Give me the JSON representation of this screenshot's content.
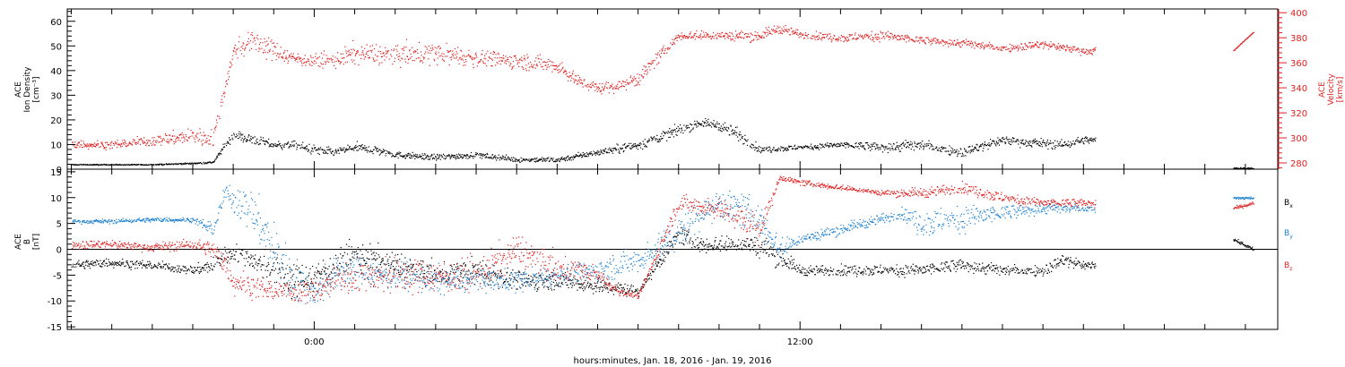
{
  "chart_data": [
    {
      "type": "scatter",
      "panel": "top",
      "title": "",
      "ylabel_left": [
        "ACE",
        "Ion Density",
        "[cm⁻³]"
      ],
      "ylabel_right": [
        "ACE",
        "Velocity",
        "[km/s]"
      ],
      "left_ticks": [
        "0",
        "10",
        "20",
        "30",
        "40",
        "50",
        "60"
      ],
      "right_ticks": [
        "280",
        "300",
        "320",
        "340",
        "360",
        "380",
        "400"
      ],
      "ylim_left": [
        0,
        65
      ],
      "ylim_right": [
        275,
        403
      ],
      "x_unit": "hours from 2016-01-18 00:00",
      "xlim": [
        -6.1,
        23.8
      ],
      "series": [
        {
          "name": "",
          "axis": "left",
          "color": "#000000",
          "x": [
            -6.0,
            -5.0,
            -4.0,
            -3.0,
            -2.5,
            -2.2,
            -2.0,
            -1.5,
            -1.0,
            -0.5,
            0.0,
            0.5,
            1.0,
            1.5,
            2.0,
            3.0,
            4.0,
            5.0,
            6.0,
            7.0,
            8.0,
            9.0,
            9.5,
            10.0,
            10.5,
            11.0,
            12.0,
            13.0,
            14.0,
            15.0,
            16.0,
            17.0,
            18.5,
            19.0,
            19.3
          ],
          "y": [
            2,
            2,
            2,
            2.5,
            3,
            10,
            14,
            12,
            10,
            10,
            8,
            7,
            9,
            8,
            6,
            5,
            6,
            4,
            4,
            7,
            10,
            16,
            19,
            18,
            14,
            8,
            9,
            10,
            9,
            10,
            7,
            12,
            10,
            12,
            12
          ],
          "scatter": [
            0.2,
            0.2,
            0.2,
            0.3,
            0.4,
            1.5,
            2.0,
            1.8,
            1.5,
            1.5,
            1.8,
            1.5,
            2.0,
            1.8,
            1.2,
            1.2,
            1.2,
            1.0,
            1.0,
            1.2,
            1.8,
            2.0,
            1.6,
            2.0,
            3.0,
            1.2,
            1.0,
            1.2,
            2.0,
            2.0,
            1.8,
            1.8,
            1.8,
            1.5,
            1.0
          ]
        },
        {
          "name": "",
          "axis": "right",
          "color": "#e02020",
          "x": [
            -6.0,
            -5.0,
            -4.0,
            -3.0,
            -2.5,
            -2.0,
            -1.5,
            -1.0,
            -0.5,
            0.0,
            0.5,
            1.0,
            2.0,
            3.0,
            4.0,
            5.0,
            6.0,
            6.5,
            7.0,
            7.5,
            8.0,
            9.0,
            10.0,
            11.0,
            11.5,
            12.0,
            13.0,
            14.0,
            15.0,
            16.0,
            17.0,
            18.0,
            19.0,
            19.3
          ],
          "y": [
            295,
            295,
            298,
            302,
            300,
            370,
            378,
            370,
            364,
            362,
            362,
            368,
            366,
            368,
            364,
            362,
            358,
            346,
            340,
            342,
            348,
            382,
            382,
            382,
            388,
            383,
            380,
            382,
            378,
            376,
            372,
            375,
            370,
            370
          ],
          "scatter": [
            3,
            3,
            4,
            6,
            6,
            7,
            8,
            8,
            5,
            5,
            6,
            8,
            8,
            8,
            7,
            6,
            6,
            5,
            4,
            5,
            6,
            3,
            4,
            4,
            4,
            3,
            3,
            4,
            3,
            3,
            3,
            3,
            3,
            3
          ]
        }
      ],
      "gap_segments": [
        {
          "axis": "left",
          "color": "#000000",
          "x": [
            22.7,
            23.2
          ],
          "y": [
            0.5,
            0.5
          ]
        },
        {
          "axis": "right",
          "color": "#e02020",
          "x": [
            22.7,
            23.2
          ],
          "y": [
            370,
            385
          ]
        }
      ]
    },
    {
      "type": "scatter",
      "panel": "bottom",
      "title": "",
      "ylabel_left": [
        "ACE",
        "B",
        "[nT]"
      ],
      "left_ticks": [
        "-15",
        "-10",
        "-5",
        "0",
        "5",
        "10",
        "15"
      ],
      "ylim": [
        -15.5,
        15.5
      ],
      "xlim": [
        -6.1,
        23.8
      ],
      "x_unit": "hours from 2016-01-18 00:00",
      "x_tick_labels": [
        {
          "value": 0,
          "label": "0:00"
        },
        {
          "value": 12,
          "label": "12:00"
        }
      ],
      "xlabel": "hours:minutes, Jan. 18, 2016 - Jan. 19, 2016",
      "legend": [
        {
          "base": "B",
          "sub": "x",
          "color": "#000000"
        },
        {
          "base": "B",
          "sub": "y",
          "color": "#1a7fd0"
        },
        {
          "base": "B",
          "sub": "z",
          "color": "#e02020"
        }
      ],
      "legend_placement": "right",
      "series": [
        {
          "name": "Bx",
          "color": "#000000",
          "x": [
            -6.0,
            -5.0,
            -4.0,
            -3.0,
            -2.5,
            -2.2,
            -2.0,
            -1.5,
            -1.0,
            -0.5,
            0.0,
            0.5,
            1.0,
            2.0,
            3.0,
            4.0,
            5.0,
            6.0,
            7.0,
            8.0,
            9.0,
            9.5,
            10.0,
            10.5,
            11.0,
            12.0,
            13.0,
            14.0,
            15.0,
            16.0,
            17.0,
            18.0,
            18.5,
            19.0,
            19.3
          ],
          "y": [
            -3,
            -2.5,
            -3,
            -4,
            -3,
            -1,
            -0.5,
            -2,
            -4,
            -6,
            -5,
            -3,
            -1,
            -3,
            -5,
            -4,
            -6,
            -6,
            -7,
            -8,
            3,
            1,
            1,
            1,
            1,
            -4,
            -4,
            -4,
            -4,
            -3,
            -4,
            -4,
            -2,
            -3,
            -3
          ],
          "scatter": [
            0.8,
            0.8,
            0.8,
            0.8,
            1.5,
            1.5,
            1.5,
            2.0,
            3.0,
            3.0,
            3.0,
            2.5,
            2.5,
            2.5,
            2.0,
            2.5,
            2.0,
            1.5,
            1.5,
            1.0,
            1.5,
            1.5,
            1.5,
            1.5,
            2.5,
            1.0,
            1.0,
            1.0,
            1.2,
            1.2,
            1.0,
            1.0,
            1.2,
            0.8,
            0.8
          ]
        },
        {
          "name": "By",
          "color": "#1a7fd0",
          "x": [
            -6.0,
            -5.0,
            -4.0,
            -3.0,
            -2.5,
            -2.2,
            -2.0,
            -1.5,
            -1.0,
            -0.5,
            0.0,
            0.5,
            1.0,
            2.0,
            3.0,
            4.0,
            5.0,
            6.0,
            7.0,
            8.0,
            9.0,
            9.5,
            10.0,
            10.5,
            11.0,
            11.5,
            12.0,
            13.0,
            14.0,
            14.5,
            15.0,
            16.0,
            17.0,
            18.0,
            19.0,
            19.3
          ],
          "y": [
            5.5,
            5.5,
            5.8,
            5.8,
            4,
            11,
            10,
            7,
            0,
            -6,
            -8,
            -5,
            -4,
            -5,
            -6,
            -6,
            -6,
            -5,
            -4,
            -2,
            3,
            7,
            9,
            8,
            6,
            0,
            2,
            4,
            6,
            7,
            5,
            6,
            7,
            8,
            8,
            8
          ],
          "scatter": [
            0.4,
            0.4,
            0.4,
            0.4,
            1.5,
            1.5,
            3.0,
            4.0,
            5.0,
            4.0,
            3.0,
            3.0,
            3.0,
            2.5,
            2.5,
            2.0,
            2.0,
            2.0,
            2.0,
            2.5,
            3.0,
            3.0,
            3.0,
            3.0,
            3.0,
            2.0,
            1.0,
            1.0,
            1.0,
            1.0,
            2.5,
            2.5,
            1.5,
            1.0,
            0.8,
            0.8
          ]
        },
        {
          "name": "Bz",
          "color": "#e02020",
          "x": [
            -6.0,
            -5.0,
            -4.0,
            -3.0,
            -2.5,
            -2.2,
            -2.0,
            -1.5,
            -1.0,
            -0.5,
            0.0,
            0.5,
            1.0,
            2.0,
            3.0,
            4.0,
            5.0,
            6.0,
            6.5,
            7.0,
            7.5,
            8.0,
            9.0,
            10.0,
            11.0,
            11.5,
            12.0,
            13.0,
            14.0,
            15.0,
            16.0,
            17.0,
            18.0,
            19.0,
            19.3
          ],
          "y": [
            1,
            1,
            0.5,
            1,
            0,
            -3,
            -6,
            -7,
            -8,
            -8,
            -8,
            -6,
            -5,
            -5,
            -5,
            -5,
            0,
            -4,
            -4,
            -5,
            -8,
            -9,
            9,
            8,
            4,
            14,
            13,
            12,
            11,
            11,
            12,
            10,
            9,
            9,
            9
          ],
          "scatter": [
            0.8,
            0.8,
            0.8,
            1.0,
            1.5,
            2.0,
            2.5,
            2.0,
            2.0,
            2.0,
            2.5,
            2.5,
            3.0,
            3.0,
            3.0,
            3.0,
            3.0,
            2.5,
            2.0,
            1.5,
            0.8,
            0.5,
            1.5,
            2.0,
            3.0,
            0.5,
            0.5,
            0.5,
            0.5,
            1.0,
            1.0,
            1.0,
            0.8,
            0.8,
            0.8
          ]
        }
      ],
      "gap_segments": [
        {
          "color": "#000000",
          "x": [
            22.7,
            23.2
          ],
          "y": [
            2,
            0
          ]
        },
        {
          "color": "#1a7fd0",
          "x": [
            22.7,
            23.2
          ],
          "y": [
            10,
            10
          ]
        },
        {
          "color": "#e02020",
          "x": [
            22.7,
            23.2
          ],
          "y": [
            8,
            9
          ]
        }
      ]
    }
  ]
}
